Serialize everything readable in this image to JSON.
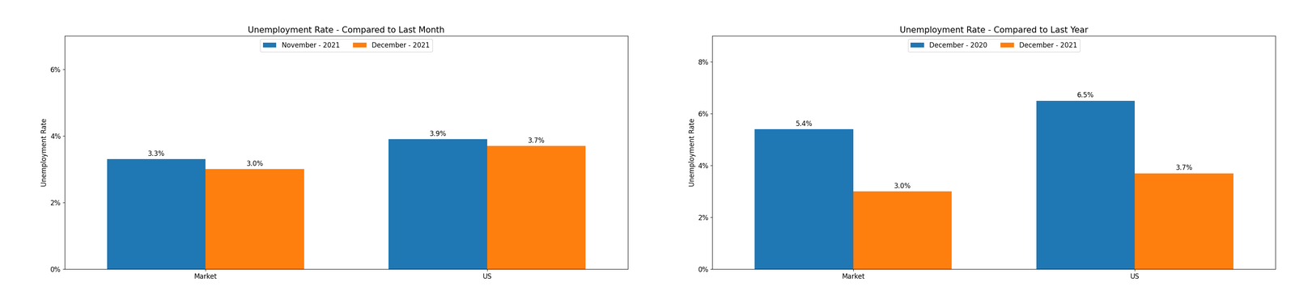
{
  "chart_data": [
    {
      "type": "bar",
      "title": "Unemployment Rate - Compared to Last Month",
      "ylabel": "Unemployment Rate",
      "categories": [
        "Market",
        "US"
      ],
      "series": [
        {
          "name": "November - 2021",
          "values": [
            3.3,
            3.9
          ],
          "value_labels": [
            "3.3%",
            "3.9%"
          ]
        },
        {
          "name": "December - 2021",
          "values": [
            3.0,
            3.7
          ],
          "value_labels": [
            "3.0%",
            "3.7%"
          ]
        }
      ],
      "ylim": [
        0,
        7.0
      ],
      "yticks": [
        {
          "value": 0,
          "label": "0%"
        },
        {
          "value": 2,
          "label": "2%"
        },
        {
          "value": 4,
          "label": "4%"
        },
        {
          "value": 6,
          "label": "6%"
        }
      ],
      "data_labels": true,
      "grid": false,
      "legend": "upper center"
    },
    {
      "type": "bar",
      "title": "Unemployment Rate - Compared to Last Year",
      "ylabel": "Unemployment Rate",
      "categories": [
        "Market",
        "US"
      ],
      "series": [
        {
          "name": "December - 2020",
          "values": [
            5.4,
            6.5
          ],
          "value_labels": [
            "5.4%",
            "6.5%"
          ]
        },
        {
          "name": "December - 2021",
          "values": [
            3.0,
            3.7
          ],
          "value_labels": [
            "3.0%",
            "3.7%"
          ]
        }
      ],
      "ylim": [
        0,
        9.0
      ],
      "yticks": [
        {
          "value": 0,
          "label": "0%"
        },
        {
          "value": 2,
          "label": "2%"
        },
        {
          "value": 4,
          "label": "4%"
        },
        {
          "value": 6,
          "label": "6%"
        },
        {
          "value": 8,
          "label": "8%"
        }
      ],
      "data_labels": true,
      "grid": false,
      "legend": "upper center"
    }
  ]
}
